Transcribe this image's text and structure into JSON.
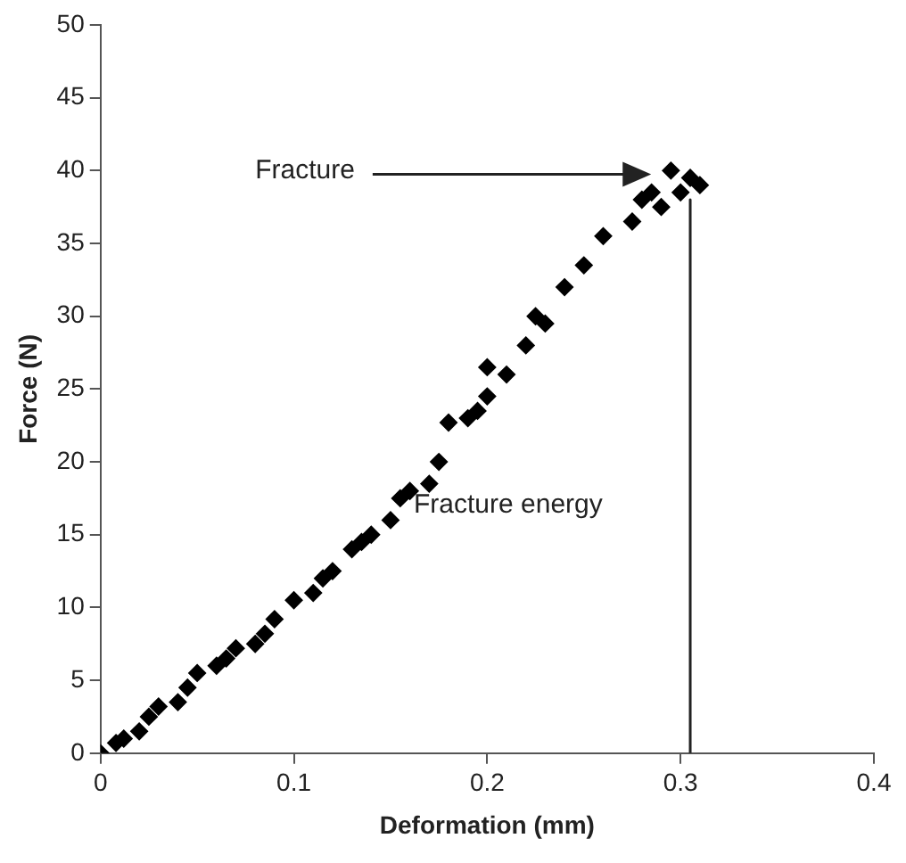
{
  "chart_data": {
    "type": "scatter",
    "xlabel": "Deformation (mm)",
    "ylabel": "Force (N)",
    "x": [
      0,
      0.008,
      0.012,
      0.02,
      0.025,
      0.03,
      0.04,
      0.045,
      0.05,
      0.06,
      0.065,
      0.07,
      0.08,
      0.085,
      0.09,
      0.1,
      0.11,
      0.115,
      0.12,
      0.13,
      0.135,
      0.14,
      0.15,
      0.155,
      0.16,
      0.17,
      0.175,
      0.18,
      0.19,
      0.195,
      0.2,
      0.2,
      0.21,
      0.22,
      0.225,
      0.23,
      0.24,
      0.25,
      0.26,
      0.275,
      0.28,
      0.285,
      0.29,
      0.295,
      0.3,
      0.305,
      0.31
    ],
    "series": [
      {
        "color": "#000000",
        "values": [
          0,
          0.7,
          1,
          1.5,
          2.5,
          3.2,
          3.5,
          4.5,
          5.5,
          6,
          6.5,
          7.2,
          7.5,
          8.2,
          9.2,
          10.5,
          11,
          12,
          12.5,
          14,
          14.5,
          15,
          16,
          17.5,
          18,
          18.5,
          20,
          22.7,
          23,
          23.5,
          24.5,
          26.5,
          26,
          28,
          30,
          29.5,
          32,
          33.5,
          35.5,
          36.5,
          38,
          38.5,
          37.5,
          40,
          38.5,
          39.5,
          39
        ]
      },
      {
        "type": "line",
        "marker": "none",
        "color": "#222222",
        "x": [
          0.305,
          0.305
        ],
        "values": [
          38,
          0
        ]
      }
    ],
    "xlim": [
      0,
      0.4
    ],
    "xticks": [
      0,
      0.1,
      0.2,
      0.3,
      0.4
    ],
    "ylim": [
      0,
      50
    ],
    "yticks": [
      0,
      5,
      10,
      15,
      20,
      25,
      30,
      35,
      40,
      45,
      50
    ],
    "grid": false,
    "legend": false,
    "marker": "diamond",
    "annotations": [
      "Fracture",
      "Fracture energy"
    ]
  }
}
